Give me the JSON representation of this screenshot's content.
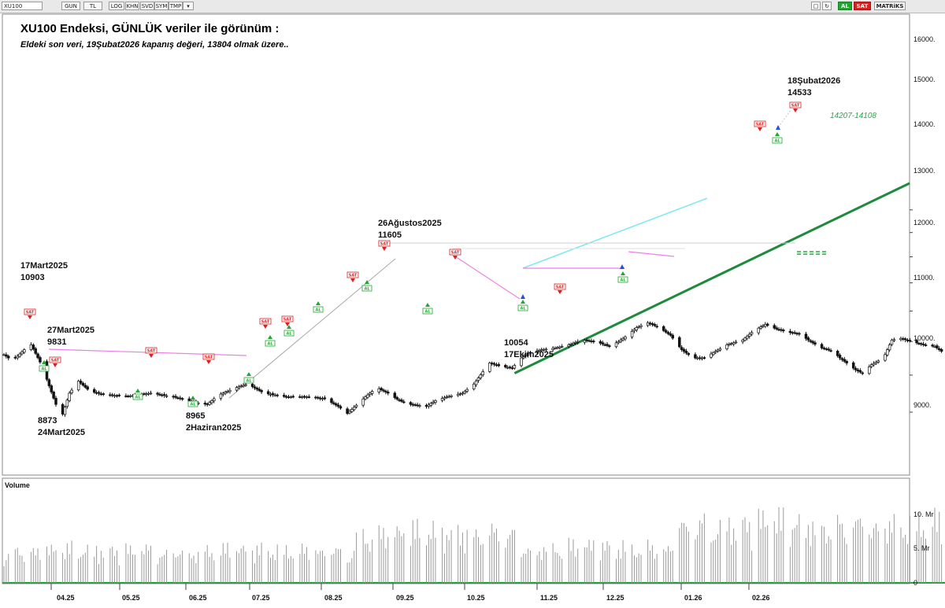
{
  "toolbar": {
    "symbol": "XU100",
    "buttons": [
      "GUN",
      "TL",
      "LOG",
      "KHN",
      "SVD",
      "SYM",
      "TMP"
    ],
    "buy_label": "AL",
    "sell_label": "SAT",
    "matrix_label": "MATRiKS"
  },
  "chart_data": {
    "type": "candlestick",
    "title": "XU100 Endeksi, GÜNLÜK veriler ile görünüm :",
    "subtitle": "Eldeki son veri, 19Şubat2026 kapanış değeri, 13804 olmak üzere..",
    "y_axis": {
      "scale": "log",
      "ylim": [
        8300,
        16700
      ],
      "ticks": [
        "16000.",
        "15000.",
        "14000.",
        "13000.",
        "12000.",
        "11000.",
        "10000.",
        "9000."
      ]
    },
    "x_axis": {
      "ticks": [
        "04.25",
        "05.25",
        "06.25",
        "07.25",
        "08.25",
        "09.25",
        "10.25",
        "11.25",
        "12.25",
        "01.26",
        "02.26"
      ]
    },
    "anchors": [
      {
        "date": "2025-03-17",
        "value": 10903
      },
      {
        "date": "2025-03-24",
        "value": 8873
      },
      {
        "date": "2025-06-02",
        "value": 8965
      },
      {
        "date": "2025-08-26",
        "value": 11605
      },
      {
        "date": "2025-10-17",
        "value": 10054
      },
      {
        "date": "2026-02-18",
        "value": 14533
      },
      {
        "date": "2026-02-19",
        "value": 13804
      }
    ],
    "annotations": [
      {
        "lines": [
          "17Mart2025",
          "10903"
        ]
      },
      {
        "lines": [
          "27Mart2025",
          "9831"
        ]
      },
      {
        "lines": [
          "8873",
          "24Mart2025"
        ]
      },
      {
        "lines": [
          "8965",
          "2Haziran2025"
        ]
      },
      {
        "lines": [
          "26Ağustos2025",
          "11605"
        ]
      },
      {
        "lines": [
          "10054",
          "17Ekim2025"
        ]
      },
      {
        "lines": [
          "18Şubat2026",
          "14533"
        ]
      }
    ],
    "target_zone": {
      "label": "14207-14108",
      "upper": 14207,
      "lower": 14108
    },
    "signal_labels": {
      "sell": "SAT",
      "buy": "AL"
    },
    "volume": {
      "title": "Volume",
      "ticks": [
        "10. Mr",
        "5. Mr",
        "0"
      ]
    },
    "colors": {
      "trendline": "#1e8a3c",
      "target": "#2ea64a",
      "channel": "#7ee8f0",
      "resistance": "#ee7fe6",
      "sell_signal": "#d92020",
      "buy_signal": "#21a632"
    }
  }
}
